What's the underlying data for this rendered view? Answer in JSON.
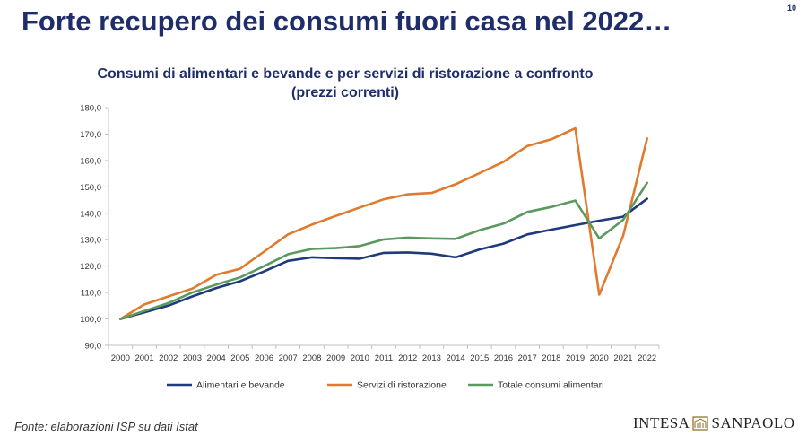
{
  "slide": {
    "title": "Forte recupero dei consumi fuori casa nel 2022…",
    "page_number": "10",
    "source": "Fonte:  elaborazioni ISP su dati Istat",
    "logo_left": "INTESA",
    "logo_right": "SANPAOLO"
  },
  "chart_data": {
    "type": "line",
    "title": "Consumi di alimentari e bevande e per servizi di ristorazione a confronto",
    "subtitle": "(prezzi correnti)",
    "xlabel": "",
    "ylabel": "",
    "x": [
      "2000",
      "2001",
      "2002",
      "2003",
      "2004",
      "2005",
      "2006",
      "2007",
      "2008",
      "2009",
      "2010",
      "2011",
      "2012",
      "2013",
      "2014",
      "2015",
      "2016",
      "2017",
      "2018",
      "2019",
      "2020",
      "2021",
      "2022"
    ],
    "ylim": [
      90,
      180
    ],
    "yticks": [
      "90,0",
      "100,0",
      "110,0",
      "120,0",
      "130,0",
      "140,0",
      "150,0",
      "160,0",
      "170,0",
      "180,0"
    ],
    "grid": false,
    "legend_position": "bottom",
    "series": [
      {
        "name": "Alimentari e bevande",
        "color": "#1f3a7a",
        "values": [
          100,
          102.5,
          105,
          108.5,
          111.7,
          114.3,
          118,
          122,
          123.3,
          123,
          122.8,
          125,
          125.2,
          124.7,
          123.3,
          126.3,
          128.5,
          132,
          133.8,
          135.5,
          137.2,
          138.7,
          145.5
        ]
      },
      {
        "name": "Servizi di ristorazione",
        "color": "#e07a2e",
        "values": [
          100,
          105.5,
          108.5,
          111.5,
          116.7,
          119,
          125.5,
          132,
          135.7,
          139,
          142.2,
          145.3,
          147.2,
          147.7,
          151,
          155.2,
          159.5,
          165.5,
          168,
          172.2,
          109.2,
          131.5,
          168.3
        ]
      },
      {
        "name": "Totale consumi alimentari",
        "color": "#5a9a5e",
        "values": [
          100,
          103,
          106,
          110,
          113,
          115.7,
          120,
          124.5,
          126.5,
          126.8,
          127.6,
          130.1,
          130.8,
          130.5,
          130.3,
          133.6,
          136.1,
          140.5,
          142.4,
          144.8,
          130.5,
          137.5,
          151.5
        ]
      }
    ]
  }
}
